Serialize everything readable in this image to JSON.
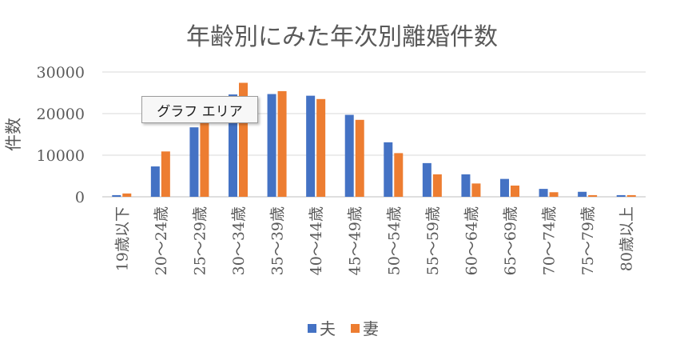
{
  "chart_data": {
    "type": "bar",
    "title": "年齢別にみた年次別離婚件数",
    "ylabel": "件数",
    "xlabel": "",
    "ylim": [
      0,
      30000
    ],
    "yticks": [
      0,
      10000,
      20000,
      30000
    ],
    "ytick_labels": [
      "0",
      "10000",
      "20000",
      "30000"
    ],
    "grid": true,
    "legend_position": "bottom",
    "categories": [
      "19歳以下",
      "20～24歳",
      "25～29歳",
      "30～34歳",
      "35～39歳",
      "40～44歳",
      "45～49歳",
      "50～54歳",
      "55～59歳",
      "60～64歳",
      "65～69歳",
      "70～74歳",
      "75～79歳",
      "80歳以上"
    ],
    "series": [
      {
        "name": "夫",
        "color": "#4472c4",
        "values": [
          400,
          7300,
          16700,
          24600,
          24700,
          24300,
          19700,
          13100,
          8100,
          5400,
          4300,
          1900,
          1200,
          400
        ]
      },
      {
        "name": "妻",
        "color": "#ed7d31",
        "values": [
          800,
          10900,
          17800,
          27400,
          25400,
          23500,
          18500,
          10500,
          5400,
          3200,
          2700,
          1100,
          400,
          400
        ]
      }
    ]
  },
  "tooltip": {
    "label": "グラフ エリア"
  }
}
